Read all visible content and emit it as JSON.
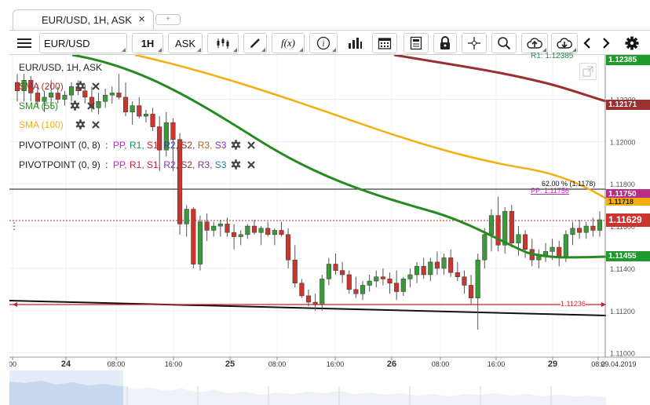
{
  "tab": {
    "title": "EUR/USD, 1H, ASK",
    "close_glyph": "×",
    "add_glyph": "+"
  },
  "toolbar": {
    "symbol": "EUR/USD",
    "timeframe": "1H",
    "side": "ASK",
    "indicator_label": "f(x)"
  },
  "chart": {
    "title": "EUR/USD, 1H, ASK",
    "legend": {
      "sma200": "SMA (200)",
      "sma55": "SMA (55)",
      "sma100": "SMA (100)",
      "pivot1_name": "PIVOTPOINT (0, 8)",
      "pivot2_name": "PIVOTPOINT (0, 9)",
      "pivot_sep": ":",
      "pivot_levels": [
        "PP,",
        "R1,",
        "S1,",
        "R2,",
        "S2,",
        "R3,",
        "S3"
      ]
    },
    "price_tags": {
      "r1": "1.12385",
      "sma200": "1.12171",
      "level": "1.11750",
      "sma100": "1.11718",
      "last": "1.11629",
      "sma55": "1.11455"
    },
    "annotations": {
      "r1_label": "R1: 1.12385",
      "fib_label": "62.00 % (1.1178)",
      "pp_label": "PP: 1.11756",
      "h_line_label": "1.11236"
    },
    "axis": {
      "y_ticks": [
        "1.12200",
        "1.12000",
        "1.11800",
        "1.11600",
        "1.11400",
        "1.11200",
        "1.11000"
      ],
      "x_ticks": [
        "00",
        "24",
        "08:00",
        "16:00",
        "25",
        "08:00",
        "16:00",
        "26",
        "08:00",
        "16:00",
        "29",
        "08:0"
      ],
      "x_end_label": "29.04.2019"
    },
    "colors": {
      "up": "#3a9a3a",
      "down": "#c9362f",
      "sma200": "#9c2f2f",
      "sma55": "#268b1f",
      "sma100": "#f4ae0f",
      "hline": "#cc2222"
    }
  },
  "chart_data": {
    "type": "candlestick",
    "title": "EUR/USD, 1H, ASK",
    "ylim": [
      1.1098,
      1.1241
    ],
    "ohlc": [
      [
        1.1228,
        1.1232,
        1.1219,
        1.1224
      ],
      [
        1.1224,
        1.1232,
        1.1219,
        1.1229
      ],
      [
        1.1229,
        1.1231,
        1.1219,
        1.1223
      ],
      [
        1.1223,
        1.1227,
        1.1216,
        1.1219
      ],
      [
        1.1219,
        1.1224,
        1.1214,
        1.1221
      ],
      [
        1.1221,
        1.1229,
        1.1216,
        1.1223
      ],
      [
        1.1223,
        1.1226,
        1.1218,
        1.122
      ],
      [
        1.122,
        1.1224,
        1.1217,
        1.1222
      ],
      [
        1.1222,
        1.1228,
        1.1219,
        1.1226
      ],
      [
        1.1226,
        1.1229,
        1.1222,
        1.1224
      ],
      [
        1.1224,
        1.1227,
        1.1218,
        1.1221
      ],
      [
        1.1221,
        1.1226,
        1.1214,
        1.1216
      ],
      [
        1.1216,
        1.1223,
        1.1213,
        1.1219
      ],
      [
        1.1219,
        1.1225,
        1.1216,
        1.1222
      ],
      [
        1.1222,
        1.1226,
        1.1218,
        1.1223
      ],
      [
        1.1223,
        1.1232,
        1.122,
        1.1221
      ],
      [
        1.1221,
        1.1228,
        1.1212,
        1.1214
      ],
      [
        1.1214,
        1.1219,
        1.1208,
        1.1217
      ],
      [
        1.1217,
        1.1221,
        1.1211,
        1.1212
      ],
      [
        1.1212,
        1.1215,
        1.1209,
        1.1213
      ],
      [
        1.1213,
        1.1216,
        1.1205,
        1.1207
      ],
      [
        1.1207,
        1.1212,
        1.1186,
        1.1196
      ],
      [
        1.1196,
        1.1214,
        1.1193,
        1.1209
      ],
      [
        1.1209,
        1.1211,
        1.1186,
        1.1201
      ],
      [
        1.1201,
        1.1204,
        1.1156,
        1.1161
      ],
      [
        1.1161,
        1.117,
        1.1155,
        1.1168
      ],
      [
        1.1168,
        1.1169,
        1.114,
        1.1142
      ],
      [
        1.1142,
        1.1165,
        1.1139,
        1.1162
      ],
      [
        1.1162,
        1.1166,
        1.1153,
        1.1158
      ],
      [
        1.1158,
        1.1162,
        1.1155,
        1.116
      ],
      [
        1.116,
        1.1163,
        1.1155,
        1.1161
      ],
      [
        1.1161,
        1.1164,
        1.1155,
        1.1157
      ],
      [
        1.1157,
        1.1161,
        1.1149,
        1.1155
      ],
      [
        1.1155,
        1.1158,
        1.1151,
        1.1156
      ],
      [
        1.1156,
        1.1161,
        1.1154,
        1.116
      ],
      [
        1.116,
        1.1163,
        1.1156,
        1.1157
      ],
      [
        1.1157,
        1.116,
        1.1151,
        1.1159
      ],
      [
        1.1159,
        1.1162,
        1.1155,
        1.1156
      ],
      [
        1.1156,
        1.1159,
        1.1151,
        1.1158
      ],
      [
        1.1158,
        1.1162,
        1.1155,
        1.1156
      ],
      [
        1.1156,
        1.1159,
        1.114,
        1.1144
      ],
      [
        1.1144,
        1.1151,
        1.1131,
        1.1133
      ],
      [
        1.1133,
        1.1135,
        1.1126,
        1.1127
      ],
      [
        1.1127,
        1.113,
        1.1122,
        1.1124
      ],
      [
        1.1124,
        1.1128,
        1.112,
        1.1123
      ],
      [
        1.1123,
        1.1137,
        1.112,
        1.1135
      ],
      [
        1.1135,
        1.1145,
        1.1132,
        1.1142
      ],
      [
        1.1142,
        1.1147,
        1.1137,
        1.1139
      ],
      [
        1.1139,
        1.1143,
        1.1133,
        1.1137
      ],
      [
        1.1137,
        1.1139,
        1.1128,
        1.113
      ],
      [
        1.113,
        1.1136,
        1.1126,
        1.1128
      ],
      [
        1.1128,
        1.1134,
        1.1125,
        1.1132
      ],
      [
        1.1132,
        1.1137,
        1.1129,
        1.1134
      ],
      [
        1.1134,
        1.1139,
        1.1131,
        1.1136
      ],
      [
        1.1136,
        1.114,
        1.1132,
        1.1135
      ],
      [
        1.1135,
        1.1138,
        1.1128,
        1.1133
      ],
      [
        1.1133,
        1.1139,
        1.1125,
        1.1129
      ],
      [
        1.1129,
        1.1136,
        1.1127,
        1.1135
      ],
      [
        1.1135,
        1.114,
        1.1131,
        1.1137
      ],
      [
        1.1137,
        1.1143,
        1.1133,
        1.1141
      ],
      [
        1.1141,
        1.1145,
        1.1135,
        1.1137
      ],
      [
        1.1137,
        1.1145,
        1.1134,
        1.1143
      ],
      [
        1.1143,
        1.1148,
        1.1137,
        1.114
      ],
      [
        1.114,
        1.1147,
        1.1137,
        1.1145
      ],
      [
        1.1145,
        1.1149,
        1.1136,
        1.1138
      ],
      [
        1.1138,
        1.1143,
        1.1134,
        1.1136
      ],
      [
        1.1136,
        1.1139,
        1.1128,
        1.1132
      ],
      [
        1.1132,
        1.1137,
        1.1123,
        1.1126
      ],
      [
        1.1126,
        1.1147,
        1.1111,
        1.1144
      ],
      [
        1.1144,
        1.1159,
        1.114,
        1.1156
      ],
      [
        1.1156,
        1.1168,
        1.1148,
        1.1165
      ],
      [
        1.1165,
        1.1174,
        1.1148,
        1.1151
      ],
      [
        1.1151,
        1.1169,
        1.1147,
        1.1167
      ],
      [
        1.1167,
        1.117,
        1.115,
        1.1152
      ],
      [
        1.1152,
        1.116,
        1.1146,
        1.1156
      ],
      [
        1.1156,
        1.1158,
        1.1145,
        1.1149
      ],
      [
        1.1149,
        1.1154,
        1.1141,
        1.1144
      ],
      [
        1.1144,
        1.1149,
        1.114,
        1.1146
      ],
      [
        1.1146,
        1.1152,
        1.1143,
        1.1148
      ],
      [
        1.1148,
        1.1154,
        1.1144,
        1.115
      ],
      [
        1.115,
        1.1153,
        1.1141,
        1.1145
      ],
      [
        1.1145,
        1.1158,
        1.1143,
        1.1156
      ],
      [
        1.1156,
        1.1162,
        1.1151,
        1.1159
      ],
      [
        1.1159,
        1.1163,
        1.1154,
        1.1157
      ],
      [
        1.1157,
        1.1162,
        1.1154,
        1.116
      ],
      [
        1.116,
        1.1164,
        1.1155,
        1.1158
      ],
      [
        1.1158,
        1.1167,
        1.1155,
        1.1163
      ]
    ]
  }
}
